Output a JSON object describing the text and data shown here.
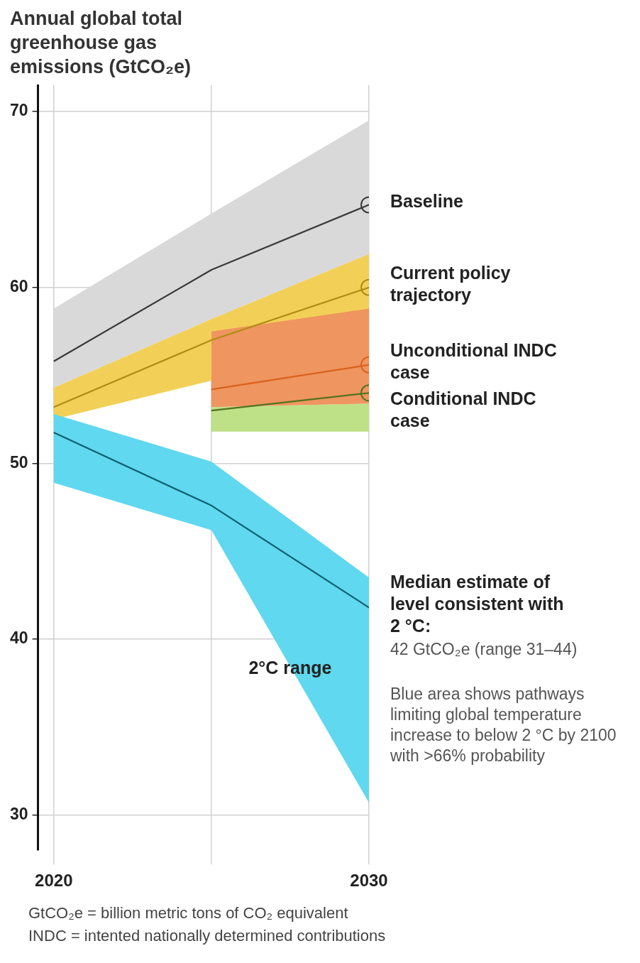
{
  "chart_data": {
    "type": "line",
    "title": "Annual global total greenhouse gas emissions (GtCO₂e)",
    "xlim": [
      2019.5,
      2030
    ],
    "xticks": [
      2020,
      {
        "value": 2025,
        "label": null
      },
      2030
    ],
    "ylim": [
      28,
      71.5
    ],
    "yticks": [
      30,
      40,
      50,
      60,
      70
    ],
    "grid": true,
    "series": [
      {
        "name": "Baseline",
        "color": "#3a3a3a",
        "x": [
          2020,
          2025,
          2030
        ],
        "values": [
          55.8,
          61.0,
          64.7
        ],
        "lower": [
          54.3,
          58.2,
          61.9
        ],
        "upper": [
          58.8,
          64.2,
          69.5
        ]
      },
      {
        "name": "Current policy trajectory",
        "color": "#ae8c12",
        "x": [
          2020,
          2025,
          2030
        ],
        "values": [
          53.2,
          57.0,
          60.0
        ],
        "lower": [
          52.5,
          54.7,
          58.8
        ],
        "upper": [
          54.3,
          58.2,
          61.9
        ]
      },
      {
        "name": "Conditional INDC case",
        "color": "#52731f",
        "x": [
          2025,
          2030
        ],
        "values": [
          53.0,
          54.0
        ],
        "lower": [
          51.8,
          51.8
        ],
        "upper": [
          53.2,
          53.4
        ]
      },
      {
        "name": "Unconditional INDC case",
        "color": "#d9621b",
        "x": [
          2025,
          2030
        ],
        "values": [
          54.2,
          55.6
        ],
        "lower": [
          53.2,
          53.4
        ],
        "upper": [
          57.5,
          58.8
        ]
      },
      {
        "name": "Median estimate of level consistent with 2 °C:",
        "color": "#0e6070",
        "x": [
          2020,
          2025,
          2030
        ],
        "values": [
          51.75,
          47.6,
          41.8
        ],
        "lower": [
          48.9,
          46.2,
          30.7
        ],
        "upper": [
          52.8,
          50.1,
          43.5
        ]
      },
      {
        "type": "scatter",
        "marker": "circle",
        "x": [
          2030,
          2030,
          2030,
          2030
        ],
        "values": [
          64.7,
          60.0,
          55.6,
          54.0
        ],
        "colors": [
          "#3a3a3a",
          "#ae8c12",
          "#d9621b",
          "#52731f"
        ]
      }
    ],
    "annotations": [
      {
        "text": "2°C range",
        "x": 2027.5,
        "y": 38.3
      },
      "42 GtCO₂e (range 31–44)",
      "Blue area shows pathways limiting global temperature increase to below 2 °C by 2100 with >66% probability",
      "GtCO₂e = billion metric tons of CO₂ equivalent",
      "INDC = intented nationally determined contributions"
    ]
  }
}
